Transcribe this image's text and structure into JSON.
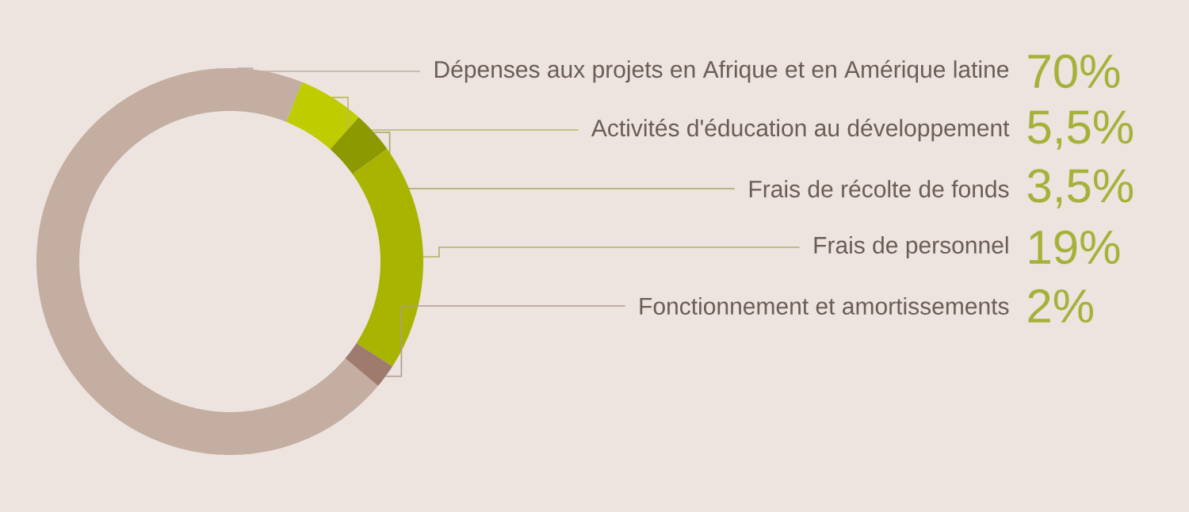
{
  "chart_data": {
    "type": "donut",
    "categories": [
      "Dépenses aux projets en Afrique et en Amérique latine",
      "Activités d'éducation au développement",
      "Frais de récolte de fonds",
      "Frais de personnel",
      "Fonctionnement et amortissements"
    ],
    "values": [
      70,
      5.5,
      3.5,
      19,
      2
    ],
    "colors": [
      "#c4ada1",
      "#bfcc00",
      "#8c9900",
      "#a8b400",
      "#9e7b6c"
    ],
    "value_labels": [
      "70%",
      "5,5%",
      "3,5%",
      "19%",
      "2%"
    ]
  }
}
